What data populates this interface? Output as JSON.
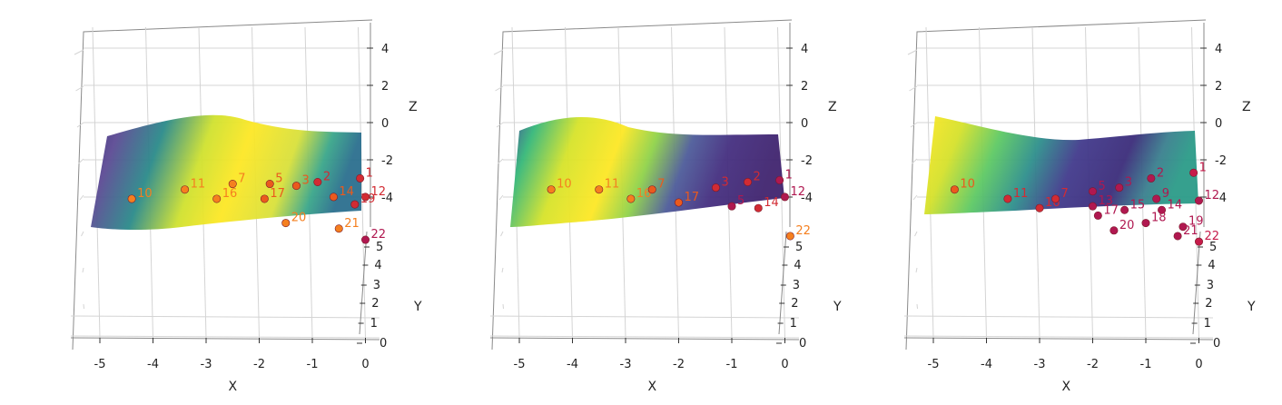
{
  "colors": {
    "surface_low": "#46337e",
    "surface_mid": "#21908d",
    "surface_high": "#fde725",
    "point_colors": [
      "#f57f1f",
      "#ea5a1d",
      "#d22b33",
      "#b01850",
      "#c61b4a"
    ]
  },
  "chart_data": [
    {
      "type": "scatter",
      "subtype": "3d-scatter-with-surface",
      "xlabel": "X",
      "ylabel": "Y",
      "zlabel": "Z",
      "xlim": [
        -5.5,
        0.3
      ],
      "ylim": [
        0,
        5
      ],
      "zlim": [
        -5,
        5
      ],
      "x_ticks": [
        "-5",
        "-4",
        "-3",
        "-2",
        "-1",
        "0"
      ],
      "y_ticks": [
        "0",
        "1",
        "2",
        "3",
        "4",
        "5"
      ],
      "z_ticks": [
        "-4",
        "-2",
        "0",
        "2",
        "4"
      ],
      "surface": {
        "colormap": "viridis",
        "bright_region": "center",
        "dark_region": "left-and-right"
      },
      "points": [
        {
          "label": "10",
          "x": -4.4,
          "z": -1.9,
          "c": 0
        },
        {
          "label": "11",
          "x": -3.4,
          "z": -1.4,
          "c": 0
        },
        {
          "label": "16",
          "x": -2.8,
          "z": -1.9,
          "c": 0
        },
        {
          "label": "7",
          "x": -2.5,
          "z": -1.1,
          "c": 0
        },
        {
          "label": "17",
          "x": -1.9,
          "z": -1.9,
          "c": 1
        },
        {
          "label": "5",
          "x": -1.8,
          "z": -1.1,
          "c": 1
        },
        {
          "label": "3",
          "x": -1.3,
          "z": -1.2,
          "c": 1
        },
        {
          "label": "2",
          "x": -0.9,
          "z": -1.0,
          "c": 2
        },
        {
          "label": "20",
          "x": -1.5,
          "z": -3.2,
          "c": 0
        },
        {
          "label": "21",
          "x": -0.5,
          "z": -3.5,
          "c": 0
        },
        {
          "label": "14",
          "x": -0.6,
          "z": -1.8,
          "c": 1
        },
        {
          "label": "19",
          "x": -0.2,
          "z": -2.2,
          "c": 2
        },
        {
          "label": "12",
          "x": 0.0,
          "z": -1.8,
          "c": 2
        },
        {
          "label": "1",
          "x": -0.1,
          "z": -0.8,
          "c": 2
        },
        {
          "label": "22",
          "x": 0.0,
          "z": -4.1,
          "c": 3
        }
      ]
    },
    {
      "type": "scatter",
      "subtype": "3d-scatter-with-surface",
      "xlabel": "X",
      "ylabel": "Y",
      "zlabel": "Z",
      "xlim": [
        -5.5,
        0.3
      ],
      "ylim": [
        0,
        5
      ],
      "zlim": [
        -5,
        5
      ],
      "x_ticks": [
        "-5",
        "-4",
        "-3",
        "-2",
        "-1",
        "0"
      ],
      "y_ticks": [
        "0",
        "1",
        "2",
        "3",
        "4",
        "5"
      ],
      "z_ticks": [
        "-4",
        "-2",
        "0",
        "2",
        "4"
      ],
      "surface": {
        "colormap": "viridis",
        "bright_region": "left",
        "dark_region": "right"
      },
      "points": [
        {
          "label": "10",
          "x": -4.4,
          "z": -1.4,
          "c": 0
        },
        {
          "label": "11",
          "x": -3.5,
          "z": -1.4,
          "c": 0
        },
        {
          "label": "16",
          "x": -2.9,
          "z": -1.9,
          "c": 0
        },
        {
          "label": "7",
          "x": -2.5,
          "z": -1.4,
          "c": 1
        },
        {
          "label": "17",
          "x": -2.0,
          "z": -2.1,
          "c": 1
        },
        {
          "label": "3",
          "x": -1.3,
          "z": -1.3,
          "c": 2
        },
        {
          "label": "2",
          "x": -0.7,
          "z": -1.0,
          "c": 2
        },
        {
          "label": "1",
          "x": -0.1,
          "z": -0.9,
          "c": 3
        },
        {
          "label": "12",
          "x": 0.0,
          "z": -1.8,
          "c": 3
        },
        {
          "label": "14",
          "x": -0.5,
          "z": -2.4,
          "c": 2
        },
        {
          "label": "5",
          "x": -1.0,
          "z": -2.3,
          "c": 3
        },
        {
          "label": "22",
          "x": 0.1,
          "z": -3.9,
          "c": 0
        }
      ]
    },
    {
      "type": "scatter",
      "subtype": "3d-scatter-with-surface",
      "xlabel": "X",
      "ylabel": "Y",
      "zlabel": "Z",
      "xlim": [
        -5.5,
        0.3
      ],
      "ylim": [
        0,
        5
      ],
      "zlim": [
        -5,
        5
      ],
      "x_ticks": [
        "-5",
        "-4",
        "-3",
        "-2",
        "-1",
        "0"
      ],
      "y_ticks": [
        "0",
        "1",
        "2",
        "3",
        "4",
        "5"
      ],
      "z_ticks": [
        "-4",
        "-2",
        "0",
        "2",
        "4"
      ],
      "surface": {
        "colormap": "viridis",
        "bright_region": "left",
        "dark_region": "center-right"
      },
      "points": [
        {
          "label": "10",
          "x": -4.6,
          "z": -1.4,
          "c": 1
        },
        {
          "label": "11",
          "x": -3.6,
          "z": -1.9,
          "c": 2
        },
        {
          "label": "16",
          "x": -3.0,
          "z": -2.4,
          "c": 2
        },
        {
          "label": "7",
          "x": -2.7,
          "z": -1.9,
          "c": 2
        },
        {
          "label": "5",
          "x": -2.0,
          "z": -1.5,
          "c": 3
        },
        {
          "label": "13",
          "x": -2.0,
          "z": -2.3,
          "c": 3
        },
        {
          "label": "17",
          "x": -1.9,
          "z": -2.8,
          "c": 3
        },
        {
          "label": "3",
          "x": -1.5,
          "z": -1.3,
          "c": 3
        },
        {
          "label": "15",
          "x": -1.4,
          "z": -2.5,
          "c": 3
        },
        {
          "label": "2",
          "x": -0.9,
          "z": -0.8,
          "c": 3
        },
        {
          "label": "9",
          "x": -0.8,
          "z": -1.9,
          "c": 3
        },
        {
          "label": "14",
          "x": -0.7,
          "z": -2.5,
          "c": 3
        },
        {
          "label": "20",
          "x": -1.6,
          "z": -3.6,
          "c": 3
        },
        {
          "label": "18",
          "x": -1.0,
          "z": -3.2,
          "c": 3
        },
        {
          "label": "12",
          "x": 0.0,
          "z": -2.0,
          "c": 3
        },
        {
          "label": "1",
          "x": -0.1,
          "z": -0.5,
          "c": 4
        },
        {
          "label": "19",
          "x": -0.3,
          "z": -3.4,
          "c": 3
        },
        {
          "label": "21",
          "x": -0.4,
          "z": -3.9,
          "c": 3
        },
        {
          "label": "22",
          "x": 0.0,
          "z": -4.2,
          "c": 4
        }
      ]
    }
  ]
}
